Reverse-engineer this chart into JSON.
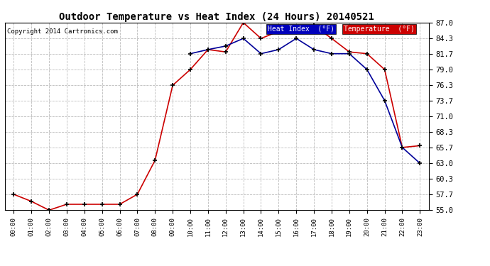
{
  "title": "Outdoor Temperature vs Heat Index (24 Hours) 20140521",
  "copyright": "Copyright 2014 Cartronics.com",
  "x_labels": [
    "00:00",
    "01:00",
    "02:00",
    "03:00",
    "04:00",
    "05:00",
    "06:00",
    "07:00",
    "08:00",
    "09:00",
    "10:00",
    "11:00",
    "12:00",
    "13:00",
    "14:00",
    "15:00",
    "16:00",
    "17:00",
    "18:00",
    "19:00",
    "20:00",
    "21:00",
    "22:00",
    "23:00"
  ],
  "y_ticks": [
    55.0,
    57.7,
    60.3,
    63.0,
    65.7,
    68.3,
    71.0,
    73.7,
    76.3,
    79.0,
    81.7,
    84.3,
    87.0
  ],
  "ylim": [
    55.0,
    87.0
  ],
  "temperature": [
    57.7,
    56.5,
    55.0,
    56.0,
    56.0,
    56.0,
    56.0,
    57.7,
    63.5,
    76.3,
    79.0,
    82.4,
    82.0,
    87.0,
    84.3,
    85.5,
    86.0,
    86.5,
    84.3,
    82.0,
    81.7,
    79.0,
    65.7,
    66.0
  ],
  "heat_index": [
    null,
    null,
    null,
    null,
    null,
    null,
    null,
    null,
    null,
    null,
    81.7,
    82.4,
    83.0,
    84.3,
    81.7,
    82.4,
    84.3,
    82.4,
    81.7,
    81.7,
    79.0,
    73.7,
    65.7,
    63.0
  ],
  "temp_color": "#cc0000",
  "heat_color": "#000099",
  "bg_color": "#ffffff",
  "grid_color": "#bbbbbb",
  "legend_heat_bg": "#0000bb",
  "legend_temp_bg": "#cc0000",
  "legend_heat_text": "Heat Index  (°F)",
  "legend_temp_text": "Temperature  (°F)"
}
